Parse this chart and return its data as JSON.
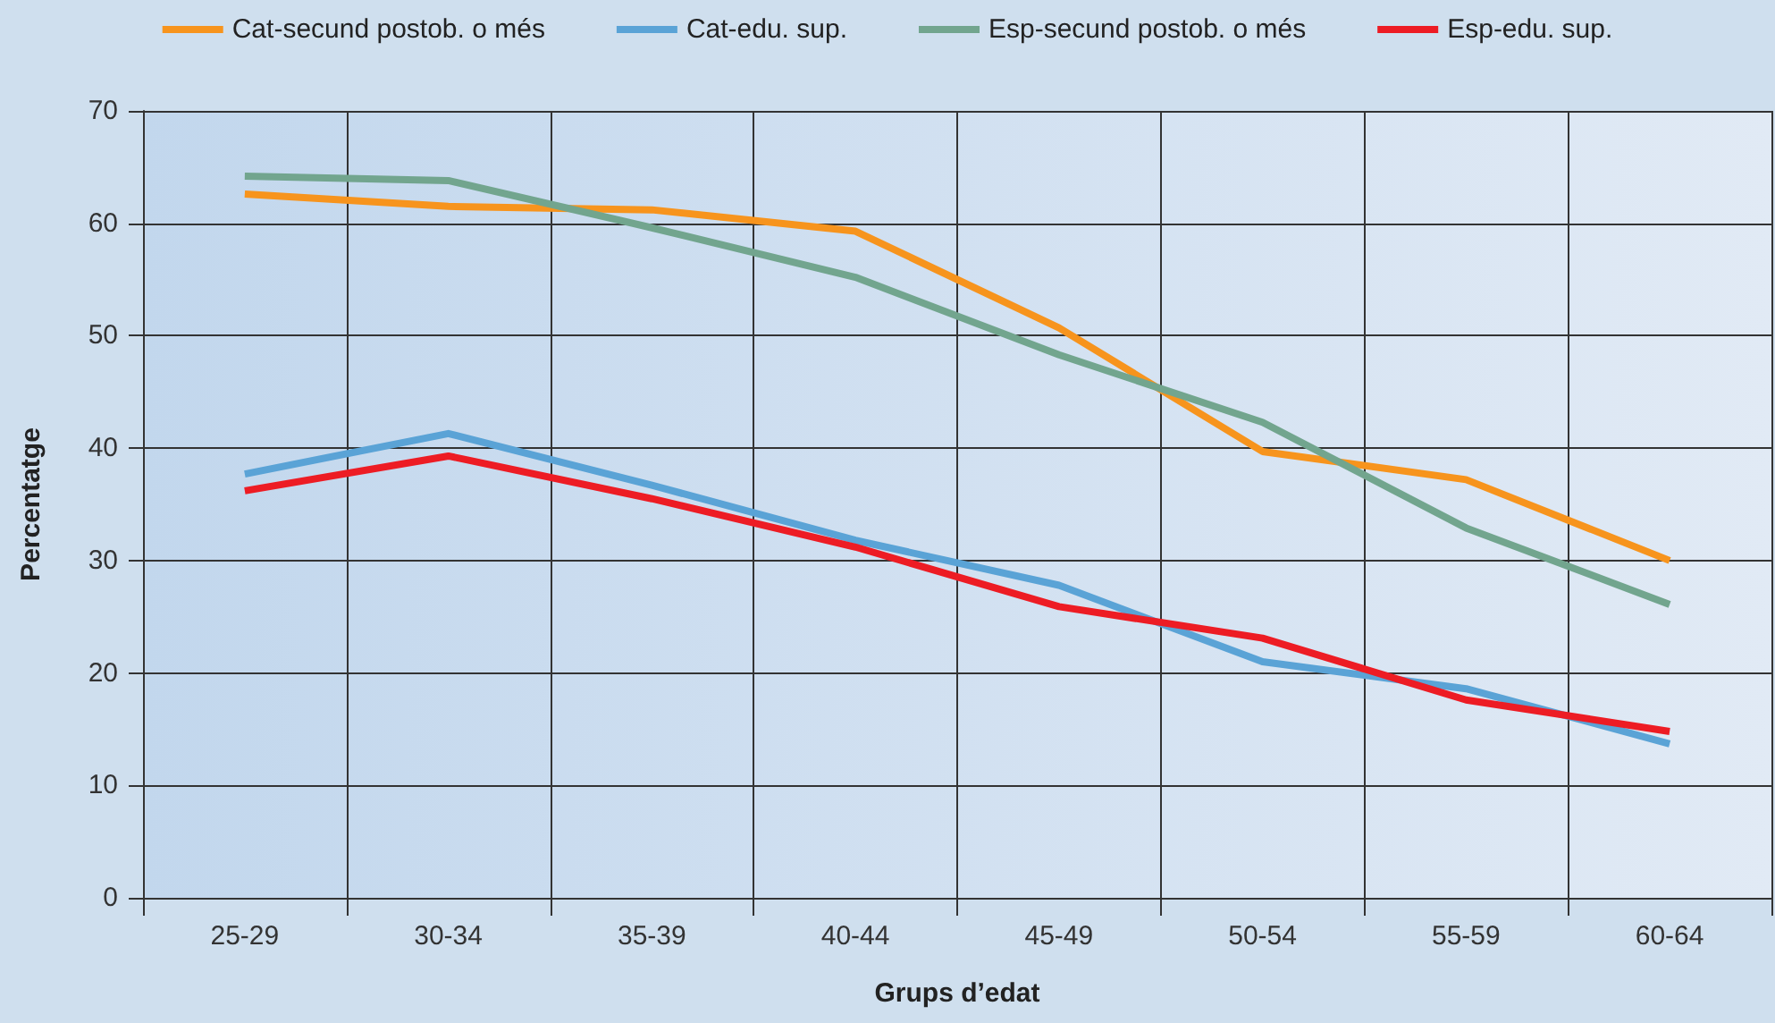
{
  "chart_data": {
    "type": "line",
    "xlabel": "Grups d’edat",
    "ylabel": "Percentatge",
    "categories": [
      "25-29",
      "30-34",
      "35-39",
      "40-44",
      "45-49",
      "50-54",
      "55-59",
      "60-64"
    ],
    "series": [
      {
        "name": "Cat-secund postob. o més",
        "color": "#f7941d",
        "values": [
          62.6,
          61.5,
          61.2,
          59.3,
          50.7,
          39.7,
          37.2,
          30.0
        ]
      },
      {
        "name": "Cat-edu. sup.",
        "color": "#5aa3d6",
        "values": [
          37.7,
          41.3,
          36.7,
          31.8,
          27.8,
          21.0,
          18.6,
          13.7
        ]
      },
      {
        "name": "Esp-secund postob. o més",
        "color": "#72a58e",
        "values": [
          64.2,
          63.8,
          59.6,
          55.2,
          48.3,
          42.3,
          32.9,
          26.1
        ]
      },
      {
        "name": "Esp-edu. sup.",
        "color": "#ed1c24",
        "values": [
          36.2,
          39.3,
          35.5,
          31.2,
          25.9,
          23.1,
          17.6,
          14.8
        ]
      }
    ],
    "ylim": [
      0,
      70
    ],
    "yticks": [
      0,
      10,
      20,
      30,
      40,
      50,
      60,
      70
    ],
    "grid": true,
    "legend": "top",
    "marker": "none",
    "line_style": "solid"
  }
}
